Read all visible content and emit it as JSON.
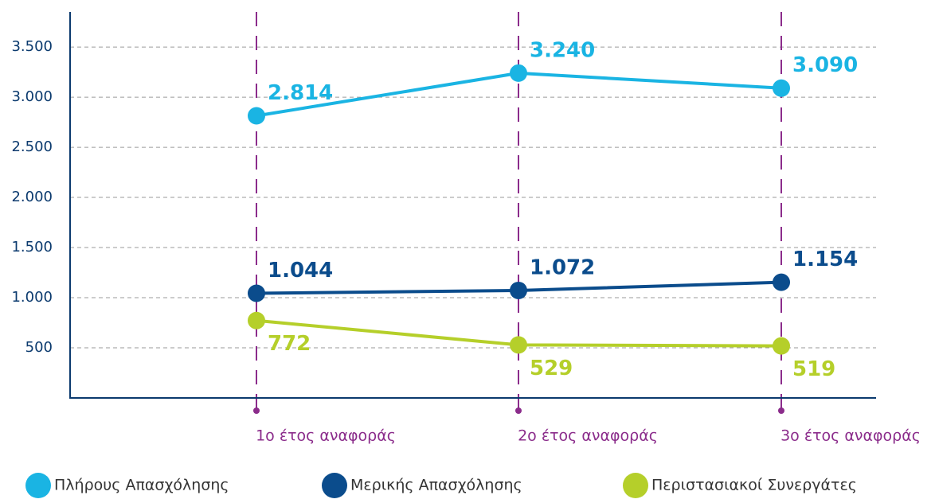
{
  "chart_data": {
    "type": "line",
    "categories": [
      "1ο έτος αναφοράς",
      "2ο έτος αναφοράς",
      "3ο έτος αναφοράς"
    ],
    "series": [
      {
        "name": "Πλήρους Απασχόλησης",
        "color": "#1ab4e3",
        "values": [
          2814,
          3240,
          3090
        ],
        "value_labels": [
          "2.814",
          "3.240",
          "3.090"
        ]
      },
      {
        "name": "Μερικής Απασχόλησης",
        "color": "#0b4c8c",
        "values": [
          1044,
          1072,
          1154
        ],
        "value_labels": [
          "1.044",
          "1.072",
          "1.154"
        ]
      },
      {
        "name": "Περιστασιακοί Συνεργάτες",
        "color": "#b5cf2a",
        "values": [
          772,
          529,
          519
        ],
        "value_labels": [
          "772",
          "529",
          "519"
        ]
      }
    ],
    "ylim": [
      0,
      3850
    ],
    "yticks": [
      500,
      {
        "value": 1000,
        "label": "1.000"
      },
      {
        "value": 1500,
        "label": "1.500"
      },
      {
        "value": 2000,
        "label": "2.000"
      },
      {
        "value": 2500,
        "label": "2.500"
      },
      {
        "value": 3000,
        "label": "3.000"
      },
      {
        "value": 3500,
        "label": "3.500"
      }
    ],
    "grid": true
  }
}
